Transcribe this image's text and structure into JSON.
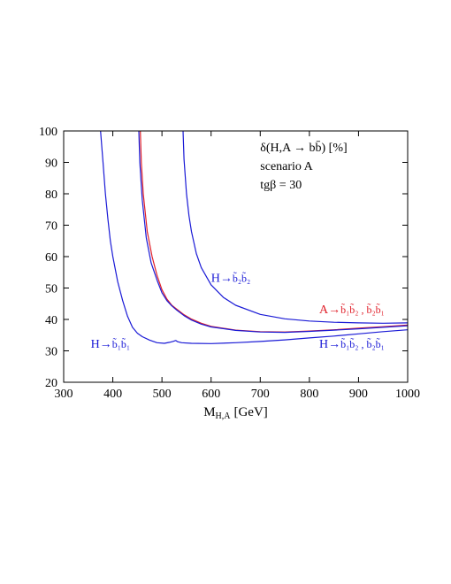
{
  "chart_data": {
    "type": "line",
    "xlabel": "M",
    "xlabel_sub": "H,A",
    "xlabel_unit": "[GeV]",
    "xlim": [
      300,
      1000
    ],
    "ylim": [
      20,
      100
    ],
    "x_ticks": [
      300,
      400,
      500,
      600,
      700,
      800,
      900,
      1000
    ],
    "y_ticks": [
      20,
      30,
      40,
      50,
      60,
      70,
      80,
      90,
      100
    ],
    "grid": false,
    "annotations": {
      "title": "δ(H,A → bb̄) [%]",
      "scenario": "scenario A",
      "tanbeta": "tgβ = 30"
    },
    "series": [
      {
        "name": "H→b̃₁b̃₁",
        "color": "#1a1ad6",
        "x": [
          375,
          380,
          385,
          390,
          395,
          400,
          410,
          420,
          430,
          440,
          450,
          460,
          475,
          490,
          505,
          515,
          522,
          528,
          532,
          540,
          560,
          600,
          650,
          700,
          750,
          800,
          850,
          900,
          950,
          1000
        ],
        "y": [
          100,
          90,
          80,
          72,
          65,
          60,
          52,
          46,
          41,
          37.5,
          35.6,
          34.5,
          33.4,
          32.6,
          32.4,
          32.7,
          33.0,
          33.3,
          32.9,
          32.6,
          32.4,
          32.3,
          32.6,
          33.0,
          33.5,
          34.1,
          34.7,
          35.4,
          36.1,
          36.7
        ]
      },
      {
        "name": "H→b̃₂b̃₂",
        "color": "#1a1ad6",
        "x": [
          543,
          545,
          550,
          555,
          560,
          570,
          580,
          600,
          625,
          650,
          700,
          750,
          800,
          850,
          900,
          950,
          1000
        ],
        "y": [
          100,
          91,
          80,
          73,
          68,
          61,
          56.5,
          51,
          47,
          44.5,
          41.6,
          40.2,
          39.5,
          39.1,
          38.9,
          38.8,
          38.9
        ]
      },
      {
        "name": "A→b̃₁b̃₂ , b̃₂b̃₁",
        "color": "#e0202a",
        "x": [
          456,
          458,
          462,
          470,
          480,
          490,
          500,
          510,
          520,
          530,
          545,
          560,
          580,
          600,
          650,
          700,
          750,
          800,
          850,
          900,
          950,
          1000
        ],
        "y": [
          100,
          90,
          80,
          68,
          60,
          54,
          49.5,
          46.5,
          44.5,
          43.3,
          41.5,
          40.1,
          38.8,
          37.8,
          36.6,
          36.1,
          36.0,
          36.3,
          36.7,
          37.2,
          37.7,
          38.2
        ]
      },
      {
        "name": "H→b̃₁b̃₂ , b̃₂b̃₁",
        "color": "#1a1ad6",
        "x": [
          453,
          455,
          460,
          468,
          478,
          490,
          500,
          510,
          520,
          530,
          545,
          560,
          580,
          600,
          650,
          700,
          750,
          800,
          850,
          900,
          950,
          1000
        ],
        "y": [
          100,
          90,
          78,
          66,
          58,
          52.5,
          48.5,
          46,
          44.3,
          43.0,
          41.2,
          39.8,
          38.5,
          37.6,
          36.5,
          36.0,
          35.9,
          36.2,
          36.6,
          37.0,
          37.5,
          38.0
        ]
      }
    ],
    "curve_labels": [
      {
        "base": "H→",
        "pair": "b̃₂b̃₂",
        "color": "#1a1ad6",
        "at": [
          600,
          52
        ]
      },
      {
        "base": "A→",
        "pair": "b̃₁b̃₂ , b̃₂b̃₁",
        "color": "#e0202a",
        "at": [
          820,
          42
        ]
      },
      {
        "base": "H→",
        "pair": "b̃₁b̃₁",
        "color": "#1a1ad6",
        "at": [
          355,
          31
        ]
      },
      {
        "base": "H→",
        "pair": "b̃₁b̃₂ , b̃₂b̃₁",
        "color": "#1a1ad6",
        "at": [
          820,
          31
        ]
      }
    ]
  }
}
